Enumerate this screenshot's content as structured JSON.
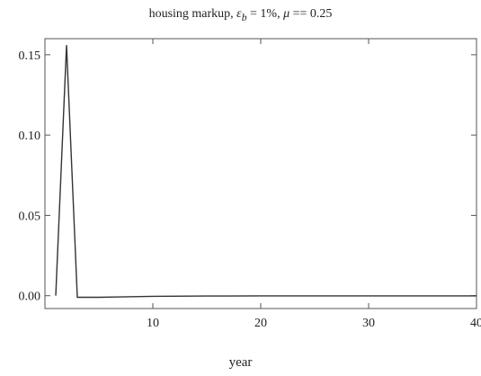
{
  "chart_data": {
    "type": "line",
    "title": {
      "prefix": "housing markup, ",
      "epsilon": "ε",
      "epsilon_sub": "b",
      "mid": " = 1%, ",
      "mu": "μ",
      "suffix": " == 0.25"
    },
    "xlabel": "year",
    "ylabel": "",
    "xlim": [
      0,
      40
    ],
    "ylim": [
      -0.008,
      0.16
    ],
    "xticks": [
      10,
      20,
      30,
      40
    ],
    "xtick_labels": [
      "10",
      "20",
      "30",
      "40"
    ],
    "yticks": [
      0.0,
      0.05,
      0.1,
      0.15
    ],
    "ytick_labels": [
      "0.00",
      "0.05",
      "0.10",
      "0.15"
    ],
    "grid": false,
    "line_color": "#333333",
    "series": [
      {
        "x": [
          1,
          2,
          3,
          5,
          10,
          15,
          20,
          25,
          30,
          35,
          40
        ],
        "y": [
          0.0,
          0.156,
          -0.001,
          -0.001,
          -0.0004,
          -0.0002,
          -0.0001,
          -0.0001,
          -0.0001,
          -0.0001,
          -0.0001
        ]
      }
    ]
  }
}
